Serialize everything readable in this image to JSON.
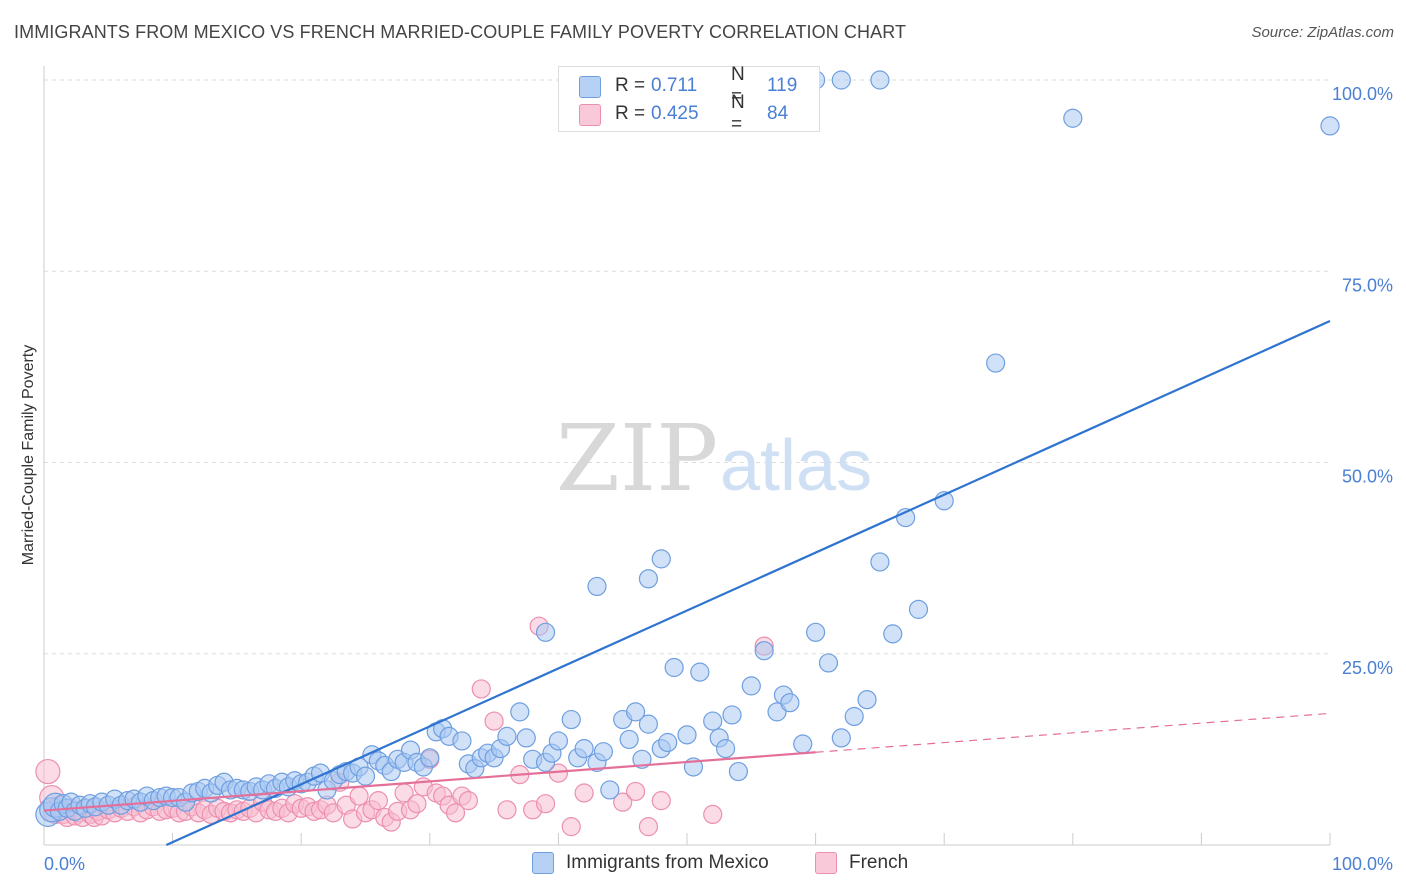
{
  "title": "IMMIGRANTS FROM MEXICO VS FRENCH MARRIED-COUPLE FAMILY POVERTY CORRELATION CHART",
  "source": "Source: ZipAtlas.com",
  "watermark": {
    "zip": "ZIP",
    "atlas": "atlas"
  },
  "legend": {
    "series1": {
      "r_label": "R = ",
      "r_value": "0.711",
      "n_label": "N = ",
      "n_value": "119"
    },
    "series2": {
      "r_label": "R = ",
      "r_value": "0.425",
      "n_label": "N = ",
      "n_value": "84"
    }
  },
  "bottom_legend": {
    "series1": "Immigrants from Mexico",
    "series2": "French"
  },
  "colors": {
    "blue_fill": "#a9c8f2",
    "blue_stroke": "#6f9fe0",
    "blue_line": "#2f74d0",
    "pink_fill": "#f7bdd0",
    "pink_stroke": "#ec8fb0",
    "pink_line": "#e4709a",
    "tick_label": "#4a7fd4",
    "grid": "#dddddd"
  },
  "chart_data": {
    "type": "scatter",
    "title": "IMMIGRANTS FROM MEXICO VS FRENCH MARRIED-COUPLE FAMILY POVERTY CORRELATION CHART",
    "xlabel": "",
    "ylabel": "Married-Couple Family Poverty",
    "xlim": [
      0,
      100
    ],
    "ylim": [
      0,
      100
    ],
    "x_tick_labels": [
      "0.0%",
      "100.0%"
    ],
    "y_tick_labels": [
      "25.0%",
      "50.0%",
      "75.0%",
      "100.0%"
    ],
    "y_ticks": [
      25,
      50,
      75,
      100
    ],
    "grid": true,
    "series": [
      {
        "name": "Immigrants from Mexico",
        "r": 0.711,
        "n": 119,
        "trend": {
          "x": [
            0,
            100
          ],
          "y": [
            -7.2,
            68.5
          ],
          "style": "solid"
        },
        "points": [
          [
            0.3,
            4
          ],
          [
            0.6,
            4.6
          ],
          [
            0.9,
            5.2
          ],
          [
            1.2,
            4.4
          ],
          [
            1.5,
            5.4
          ],
          [
            1.8,
            4.8
          ],
          [
            2.1,
            5.6
          ],
          [
            2.4,
            4.4
          ],
          [
            2.8,
            5.2
          ],
          [
            3.2,
            4.8
          ],
          [
            3.6,
            5.4
          ],
          [
            4,
            5
          ],
          [
            4.5,
            5.6
          ],
          [
            5,
            5.2
          ],
          [
            5.5,
            6
          ],
          [
            6,
            5.2
          ],
          [
            6.5,
            5.8
          ],
          [
            7,
            6
          ],
          [
            7.5,
            5.6
          ],
          [
            8,
            6.4
          ],
          [
            8.5,
            5.8
          ],
          [
            9,
            6.2
          ],
          [
            9.5,
            6.4
          ],
          [
            10,
            6.2
          ],
          [
            10.5,
            6.2
          ],
          [
            11,
            5.6
          ],
          [
            11.5,
            6.8
          ],
          [
            12,
            7
          ],
          [
            12.5,
            7.4
          ],
          [
            13,
            6.8
          ],
          [
            13.5,
            7.8
          ],
          [
            14,
            8.2
          ],
          [
            14.5,
            7.2
          ],
          [
            15,
            7.4
          ],
          [
            15.5,
            7.2
          ],
          [
            16,
            7
          ],
          [
            16.5,
            7.6
          ],
          [
            17,
            7.2
          ],
          [
            17.5,
            8
          ],
          [
            18,
            7.4
          ],
          [
            18.5,
            8.2
          ],
          [
            19,
            7.6
          ],
          [
            19.5,
            8.4
          ],
          [
            20,
            8
          ],
          [
            20.5,
            8.2
          ],
          [
            21,
            9
          ],
          [
            21.5,
            9.4
          ],
          [
            22,
            7.2
          ],
          [
            22.5,
            8.4
          ],
          [
            23,
            9.2
          ],
          [
            23.5,
            9.6
          ],
          [
            24,
            9.4
          ],
          [
            24.5,
            10.2
          ],
          [
            25,
            9
          ],
          [
            25.5,
            11.8
          ],
          [
            26,
            11
          ],
          [
            26.5,
            10.4
          ],
          [
            27,
            9.6
          ],
          [
            27.5,
            11.2
          ],
          [
            28,
            10.8
          ],
          [
            28.5,
            12.4
          ],
          [
            29,
            10.8
          ],
          [
            29.5,
            10.2
          ],
          [
            30,
            11.4
          ],
          [
            30.5,
            14.8
          ],
          [
            31,
            15.2
          ],
          [
            31.5,
            14.2
          ],
          [
            32.5,
            13.6
          ],
          [
            33,
            10.6
          ],
          [
            33.5,
            10
          ],
          [
            34,
            11.4
          ],
          [
            34.5,
            12
          ],
          [
            35,
            11.4
          ],
          [
            35.5,
            12.6
          ],
          [
            36,
            14.2
          ],
          [
            37,
            17.4
          ],
          [
            37.5,
            14
          ],
          [
            38,
            11.2
          ],
          [
            39,
            10.8
          ],
          [
            39.5,
            12
          ],
          [
            40,
            13.6
          ],
          [
            41,
            16.4
          ],
          [
            41.5,
            11.4
          ],
          [
            42,
            12.6
          ],
          [
            43,
            10.8
          ],
          [
            43.5,
            12.2
          ],
          [
            44,
            7.2
          ],
          [
            45,
            16.4
          ],
          [
            45.5,
            13.8
          ],
          [
            46,
            17.4
          ],
          [
            46.5,
            11.2
          ],
          [
            47,
            15.8
          ],
          [
            48,
            12.6
          ],
          [
            48.5,
            13.4
          ],
          [
            49,
            23.2
          ],
          [
            50,
            14.4
          ],
          [
            50.5,
            10.2
          ],
          [
            51,
            22.6
          ],
          [
            52,
            16.2
          ],
          [
            52.5,
            14
          ],
          [
            53,
            12.6
          ],
          [
            53.5,
            17
          ],
          [
            54,
            9.6
          ],
          [
            55,
            20.8
          ],
          [
            56,
            25.4
          ],
          [
            57,
            17.4
          ],
          [
            57.5,
            19.6
          ],
          [
            58,
            18.6
          ],
          [
            59,
            13.2
          ],
          [
            60,
            27.8
          ],
          [
            61,
            23.8
          ],
          [
            62,
            14
          ],
          [
            63,
            16.8
          ],
          [
            64,
            19
          ],
          [
            65,
            37
          ],
          [
            66,
            27.6
          ],
          [
            67,
            42.8
          ],
          [
            68,
            30.8
          ],
          [
            70,
            45
          ],
          [
            74,
            63
          ],
          [
            39,
            27.8
          ],
          [
            43,
            33.8
          ],
          [
            47,
            34.8
          ],
          [
            48,
            37.4
          ],
          [
            60,
            100
          ],
          [
            62,
            100
          ],
          [
            65,
            100
          ],
          [
            80,
            95
          ],
          [
            100,
            94
          ]
        ]
      },
      {
        "name": "French",
        "r": 0.425,
        "n": 84,
        "trend": {
          "x": [
            0,
            100
          ],
          "y": [
            4.5,
            17.2
          ],
          "style": "solid to x=60, dashed beyond"
        },
        "points": [
          [
            0.3,
            9.6
          ],
          [
            0.6,
            6.2
          ],
          [
            0.9,
            4.4
          ],
          [
            1.2,
            5.2
          ],
          [
            1.5,
            4
          ],
          [
            1.8,
            3.6
          ],
          [
            2.1,
            4.8
          ],
          [
            2.4,
            3.8
          ],
          [
            2.7,
            4.2
          ],
          [
            3,
            3.6
          ],
          [
            3.3,
            4.8
          ],
          [
            3.6,
            4
          ],
          [
            3.9,
            3.6
          ],
          [
            4.2,
            4.4
          ],
          [
            4.5,
            3.8
          ],
          [
            5,
            4.6
          ],
          [
            5.5,
            4.2
          ],
          [
            6,
            4.8
          ],
          [
            6.5,
            4.4
          ],
          [
            7,
            5
          ],
          [
            7.5,
            4.2
          ],
          [
            8,
            4.6
          ],
          [
            8.5,
            5
          ],
          [
            9,
            4.4
          ],
          [
            9.5,
            4.6
          ],
          [
            10,
            4.8
          ],
          [
            10.5,
            4.2
          ],
          [
            11,
            4.4
          ],
          [
            11.5,
            5
          ],
          [
            12,
            4.2
          ],
          [
            12.5,
            4.6
          ],
          [
            13,
            4
          ],
          [
            13.5,
            4.8
          ],
          [
            14,
            4.4
          ],
          [
            14.5,
            4.2
          ],
          [
            15,
            4.6
          ],
          [
            15.5,
            4.4
          ],
          [
            16,
            4.8
          ],
          [
            16.5,
            4.2
          ],
          [
            17,
            5.6
          ],
          [
            17.5,
            4.6
          ],
          [
            18,
            4.4
          ],
          [
            18.5,
            4.8
          ],
          [
            19,
            4.2
          ],
          [
            19.5,
            5.4
          ],
          [
            20,
            4.8
          ],
          [
            20.5,
            5
          ],
          [
            21,
            4.4
          ],
          [
            21.5,
            4.6
          ],
          [
            22,
            5.2
          ],
          [
            22.5,
            4.2
          ],
          [
            23,
            8.2
          ],
          [
            23.5,
            5.2
          ],
          [
            24,
            3.4
          ],
          [
            24.5,
            6.4
          ],
          [
            25,
            4.2
          ],
          [
            25.5,
            4.6
          ],
          [
            26,
            5.8
          ],
          [
            26.5,
            3.6
          ],
          [
            27,
            3
          ],
          [
            27.5,
            4.4
          ],
          [
            28,
            6.8
          ],
          [
            28.5,
            4.6
          ],
          [
            29,
            5.4
          ],
          [
            29.5,
            7.6
          ],
          [
            30,
            11.2
          ],
          [
            30.5,
            6.8
          ],
          [
            31,
            6.4
          ],
          [
            31.5,
            5.2
          ],
          [
            32,
            4.2
          ],
          [
            32.5,
            6.4
          ],
          [
            33,
            5.8
          ],
          [
            34,
            20.4
          ],
          [
            35,
            16.2
          ],
          [
            36,
            4.6
          ],
          [
            37,
            9.2
          ],
          [
            38,
            4.6
          ],
          [
            38.5,
            28.6
          ],
          [
            39,
            5.4
          ],
          [
            40,
            9.4
          ],
          [
            41,
            2.4
          ],
          [
            42,
            6.8
          ],
          [
            45,
            5.6
          ],
          [
            46,
            7
          ],
          [
            47,
            2.4
          ],
          [
            48,
            5.8
          ],
          [
            56,
            26
          ],
          [
            52,
            4
          ]
        ]
      }
    ]
  }
}
